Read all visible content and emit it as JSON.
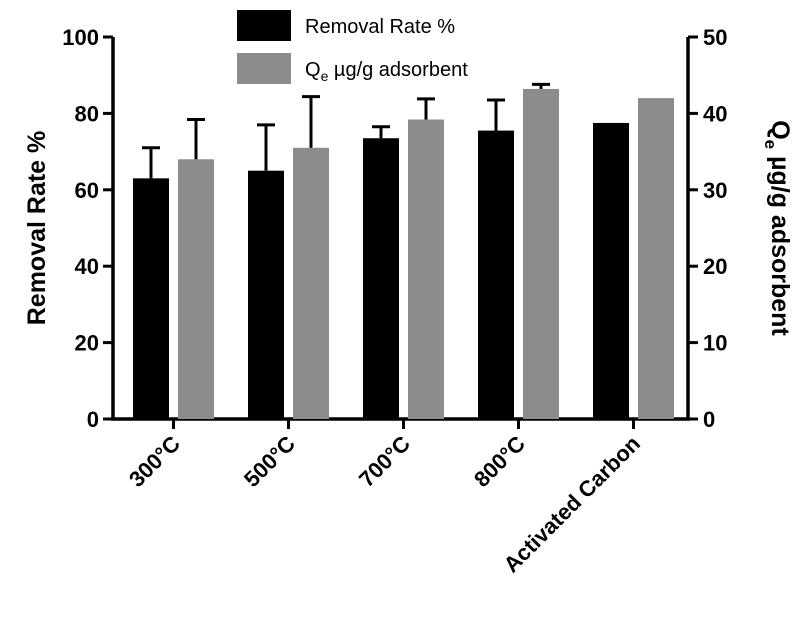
{
  "chart_data": {
    "type": "bar",
    "categories": [
      "300°C",
      "500°C",
      "700°C",
      "800°C",
      "Activated Carbon"
    ],
    "series": [
      {
        "name": "Removal Rate %",
        "axis": "left",
        "color": "#000000",
        "values": [
          63,
          65,
          73.5,
          75.5,
          77.5
        ],
        "error_upper": [
          71,
          77,
          76.5,
          83.5,
          null
        ]
      },
      {
        "name_main": "Q",
        "name_sub": "e",
        "name_rest": " µg/g adsorbent",
        "axis": "right",
        "color": "#8c8c8c",
        "values": [
          34,
          35.5,
          39.2,
          43.2,
          42
        ],
        "error_upper": [
          39.2,
          42.2,
          41.9,
          43.8,
          null
        ]
      }
    ],
    "ylabel_left": "Removal Rate %",
    "ylabel_right_main": "Q",
    "ylabel_right_sub": "e",
    "ylabel_right_rest": " µg/g adsorbent",
    "ylim_left": [
      0,
      100
    ],
    "ylim_right": [
      0,
      50
    ],
    "yticks_left": [
      "0",
      "20",
      "40",
      "60",
      "80",
      "100"
    ],
    "yticks_right": [
      "0",
      "10",
      "20",
      "30",
      "40",
      "50"
    ],
    "grid": false,
    "legend_position": "top-center"
  }
}
